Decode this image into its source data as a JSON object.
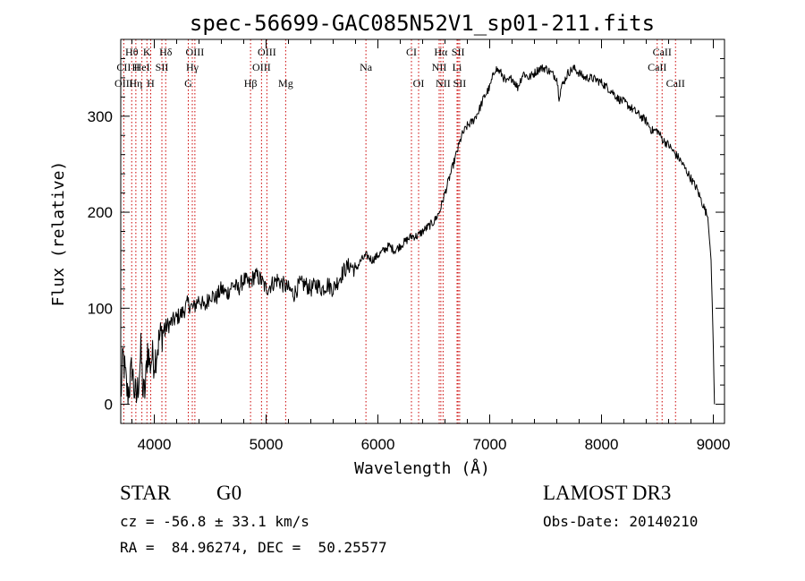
{
  "chart_data": {
    "type": "line",
    "title": "spec-56699-GAC085N52V1_sp01-211.fits",
    "xlabel": "Wavelength (Å)",
    "ylabel": "Flux (relative)",
    "xlim": [
      3700,
      9100
    ],
    "ylim": [
      -20,
      380
    ],
    "x_ticks": [
      4000,
      5000,
      6000,
      7000,
      8000,
      9000
    ],
    "y_ticks": [
      0,
      100,
      200,
      300
    ],
    "x_minor_step": 200,
    "y_minor_step": 20,
    "series": [
      {
        "name": "flux",
        "x": [
          3700,
          3720,
          3740,
          3760,
          3780,
          3800,
          3820,
          3840,
          3860,
          3880,
          3900,
          3920,
          3940,
          3960,
          3980,
          4000,
          4050,
          4100,
          4150,
          4200,
          4250,
          4300,
          4350,
          4400,
          4450,
          4500,
          4550,
          4600,
          4650,
          4700,
          4750,
          4800,
          4850,
          4900,
          4950,
          5000,
          5050,
          5100,
          5150,
          5200,
          5250,
          5300,
          5350,
          5400,
          5450,
          5500,
          5550,
          5600,
          5650,
          5700,
          5750,
          5800,
          5850,
          5900,
          5950,
          6000,
          6050,
          6100,
          6150,
          6200,
          6250,
          6300,
          6350,
          6400,
          6450,
          6500,
          6550,
          6600,
          6650,
          6700,
          6750,
          6800,
          6850,
          6900,
          6950,
          7000,
          7050,
          7100,
          7150,
          7200,
          7250,
          7300,
          7350,
          7400,
          7450,
          7500,
          7550,
          7600,
          7620,
          7640,
          7660,
          7700,
          7750,
          7800,
          7850,
          7900,
          7950,
          8000,
          8050,
          8100,
          8150,
          8200,
          8250,
          8300,
          8350,
          8400,
          8450,
          8500,
          8550,
          8600,
          8650,
          8700,
          8750,
          8800,
          8850,
          8900,
          8950,
          8980,
          9000,
          9010
        ],
        "y": [
          5,
          50,
          30,
          10,
          20,
          40,
          15,
          5,
          25,
          55,
          10,
          15,
          60,
          40,
          50,
          45,
          70,
          80,
          85,
          90,
          95,
          105,
          100,
          110,
          100,
          115,
          110,
          120,
          115,
          125,
          120,
          130,
          125,
          135,
          130,
          120,
          125,
          130,
          125,
          120,
          115,
          125,
          125,
          120,
          125,
          120,
          125,
          120,
          130,
          140,
          145,
          140,
          150,
          155,
          150,
          155,
          160,
          165,
          160,
          165,
          170,
          175,
          175,
          180,
          185,
          190,
          200,
          220,
          240,
          260,
          280,
          290,
          295,
          305,
          320,
          330,
          350,
          345,
          335,
          340,
          330,
          345,
          340,
          345,
          350,
          350,
          345,
          340,
          320,
          330,
          335,
          345,
          350,
          345,
          340,
          340,
          338,
          335,
          330,
          325,
          318,
          315,
          310,
          305,
          300,
          295,
          285,
          285,
          275,
          270,
          262,
          255,
          245,
          235,
          225,
          210,
          195,
          150,
          60,
          0
        ]
      }
    ],
    "line_labels": [
      {
        "label": "Hθ",
        "x": 3798,
        "row": 0
      },
      {
        "label": "K",
        "x": 3934,
        "row": 0
      },
      {
        "label": "Hδ",
        "x": 4102,
        "row": 0
      },
      {
        "label": "OIII",
        "x": 4363,
        "row": 0
      },
      {
        "label": "OIII",
        "x": 5007,
        "row": 0
      },
      {
        "label": "CI",
        "x": 6300,
        "row": 0
      },
      {
        "label": "Hα",
        "x": 6563,
        "row": 0
      },
      {
        "label": "SII",
        "x": 6717,
        "row": 0
      },
      {
        "label": "CaII",
        "x": 8542,
        "row": 0
      },
      {
        "label": "CII",
        "x": 3727,
        "row": 1
      },
      {
        "label": "H",
        "x": 3835,
        "row": 1
      },
      {
        "label": "HeI",
        "x": 3889,
        "row": 1
      },
      {
        "label": "SII",
        "x": 4068,
        "row": 1
      },
      {
        "label": "Hγ",
        "x": 4340,
        "row": 1
      },
      {
        "label": "OIII",
        "x": 4959,
        "row": 1
      },
      {
        "label": "Na",
        "x": 5893,
        "row": 1
      },
      {
        "label": "NII",
        "x": 6548,
        "row": 1
      },
      {
        "label": "Li",
        "x": 6708,
        "row": 1
      },
      {
        "label": "CaII",
        "x": 8498,
        "row": 1
      },
      {
        "label": "OIII",
        "x": 3727,
        "row": 2
      },
      {
        "label": "Hη",
        "x": 3835,
        "row": 2
      },
      {
        "label": "H",
        "x": 3968,
        "row": 2
      },
      {
        "label": "G",
        "x": 4304,
        "row": 2
      },
      {
        "label": "Hβ",
        "x": 4861,
        "row": 2
      },
      {
        "label": "Mg",
        "x": 5175,
        "row": 2
      },
      {
        "label": "OI",
        "x": 6364,
        "row": 2
      },
      {
        "label": "NII",
        "x": 6583,
        "row": 2
      },
      {
        "label": "SII",
        "x": 6731,
        "row": 2
      },
      {
        "label": "CaII",
        "x": 8662,
        "row": 2
      }
    ],
    "line_marker_x": [
      3727,
      3798,
      3835,
      3889,
      3934,
      3968,
      4068,
      4102,
      4304,
      4340,
      4363,
      4861,
      4959,
      5007,
      5175,
      5893,
      6300,
      6364,
      6548,
      6563,
      6583,
      6708,
      6717,
      6731,
      8498,
      8542,
      8662
    ]
  },
  "info": {
    "object_class": "STAR",
    "subclass": "G0",
    "survey": "LAMOST DR3",
    "redshift_line": "cz = -56.8 ± 33.1 km/s",
    "obs_date_line": "Obs-Date: 20140210",
    "coords_line": "RA =  84.96274, DEC =  50.25577"
  },
  "colors": {
    "axis": "#000000",
    "spectrum": "#000000",
    "line_marker": "#cc0000"
  }
}
